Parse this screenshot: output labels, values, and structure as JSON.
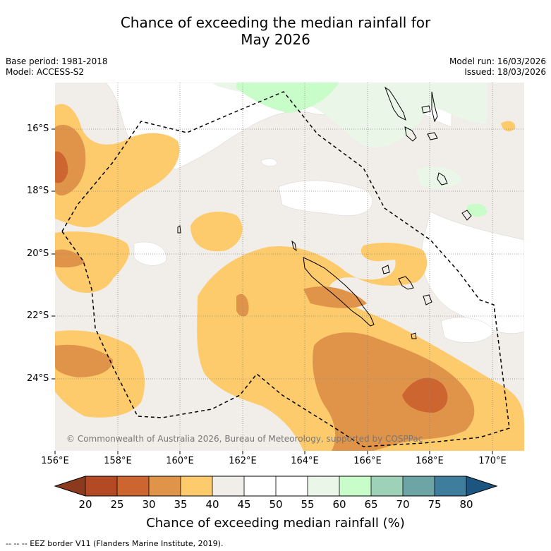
{
  "title_line1": "Chance of exceeding the median rainfall for",
  "title_line2": "May 2026",
  "base_period": "Base period: 1981-2018",
  "model": "Model: ACCESS-S2",
  "model_run": "Model run: 16/03/2026",
  "issued": "Issued: 18/03/2026",
  "copyright": "© Commonwealth of Australia 2026, Bureau of Meteorology, supported by COSPPac",
  "footer_note": "--  --  -- EEZ border V11 (Flanders Marine Institute, 2019).",
  "x_axis": {
    "labels": [
      "156°E",
      "158°E",
      "160°E",
      "162°E",
      "164°E",
      "166°E",
      "168°E",
      "170°E"
    ]
  },
  "y_axis": {
    "labels": [
      "16°S",
      "18°S",
      "20°S",
      "22°S",
      "24°S"
    ]
  },
  "colorbar": {
    "title": "Chance of exceeding median rainfall (%)",
    "ticks": [
      "20",
      "25",
      "30",
      "35",
      "40",
      "45",
      "50",
      "55",
      "60",
      "65",
      "70",
      "75",
      "80"
    ],
    "colors": [
      "#8b3a1e",
      "#b34a24",
      "#cd6531",
      "#e09449",
      "#fdcb6b",
      "#f1ede8",
      "#ffffff",
      "#ffffff",
      "#e9f6e8",
      "#c8fcc8",
      "#9dd2b8",
      "#6da5a6",
      "#3f7d9c",
      "#1b5580"
    ]
  },
  "legend": {
    "eez_border": "EEZ border V11 (Flanders Marine Institute, 2019)"
  }
}
